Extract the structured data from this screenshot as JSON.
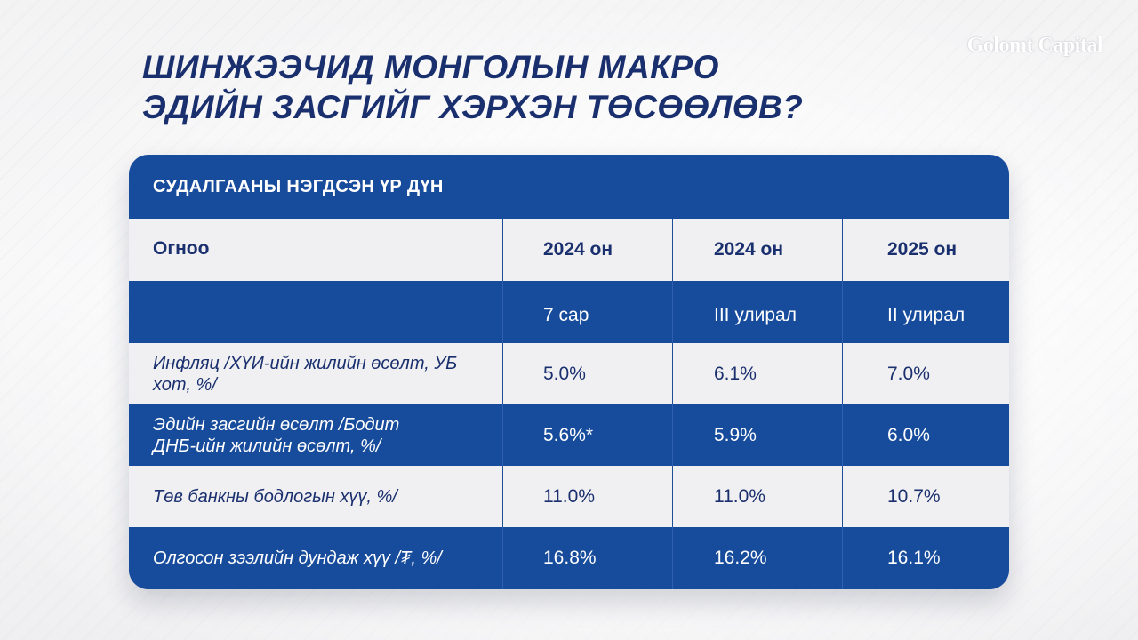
{
  "title_lines": [
    "ШИНЖЭЭЧИД МОНГОЛЫН МАКРО",
    "ЭДИЙН ЗАСГИЙГ ХЭРХЭН ТӨСӨӨЛӨВ?"
  ],
  "logo": "Golomt Capital",
  "table": {
    "caption": "СУДАЛГААНЫ НЭГДСЭН ҮР ДҮН",
    "header": [
      "Огноо",
      "2024 он",
      "2024 он",
      "2025 он"
    ],
    "subheader": [
      "",
      "7 сар",
      "III улирал",
      "II улирал"
    ],
    "rows": [
      {
        "label": "Инфляц /ХҮИ-ийн жилийн өсөлт, УБ хот, %/",
        "values": [
          "5.0%",
          "6.1%",
          "7.0%"
        ]
      },
      {
        "label": "Эдийн засгийн өсөлт /Бодит ДНБ-ийн жилийн өсөлт, %/",
        "values": [
          "5.6%*",
          "5.9%",
          "6.0%"
        ]
      },
      {
        "label": "Төв банкны бодлогын хүү, %/",
        "values": [
          "11.0%",
          "11.0%",
          "10.7%"
        ]
      },
      {
        "label": "Олгосон зээлийн дундаж хүү /₮, %/",
        "values": [
          "16.8%",
          "16.2%",
          "16.1%"
        ]
      }
    ]
  },
  "colors": {
    "primary_blue": "#174b9b",
    "title_navy": "#1a2f6e",
    "light_row": "#f0f0f2"
  }
}
